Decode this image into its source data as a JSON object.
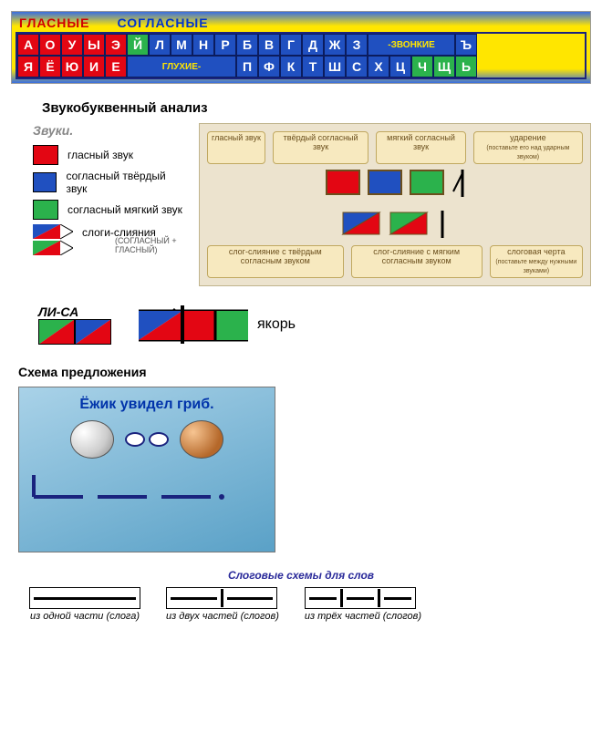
{
  "colors": {
    "vowel": "#e30613",
    "consonant_hard": "#2050c0",
    "consonant_soft": "#2bb24c",
    "frame": "#0b1c5e",
    "yellow": "#ffe600"
  },
  "alphabet_bar": {
    "header_vowels": "ГЛАСНЫЕ",
    "header_consonants": "СОГЛАСНЫЕ",
    "row1": {
      "vowels": [
        "А",
        "О",
        "У",
        "Ы",
        "Э"
      ],
      "consonants": [
        "Й",
        "Л",
        "М",
        "Н",
        "Р",
        "Б",
        "В",
        "Г",
        "Д",
        "Ж",
        "З"
      ],
      "tag": "-ЗВОНКИЕ",
      "sign": "Ъ"
    },
    "row2": {
      "vowels": [
        "Я",
        "Ё",
        "Ю",
        "И",
        "Е"
      ],
      "tag": "ГЛУХИЕ-",
      "consonants": [
        "П",
        "Ф",
        "К",
        "Т",
        "Ш",
        "С",
        "Х",
        "Ц",
        "Ч",
        "Щ"
      ],
      "sign": "Ь"
    }
  },
  "section1_title": "Звукобуквенный анализ",
  "legend": {
    "title": "Звуки.",
    "vowel": "гласный звук",
    "hard": "согласный твёрдый звук",
    "soft": "согласный мягкий звук",
    "merge": "слоги-слияния",
    "merge_sub": "(СОГЛАСНЫЙ + ГЛАСНЫЙ)"
  },
  "annot": {
    "box1": "гласный звук",
    "box2": "твёрдый согласный звук",
    "box3": "мягкий согласный звук",
    "box4": "ударение",
    "box4_sub": "(поставьте его над ударным звуком)",
    "box5": "слог-слияние с твёрдым согласным звуком",
    "box6": "слог-слияние с мягким согласным звуком",
    "box7": "слоговая черта",
    "box7_sub": "(поставьте между нужными звуками)"
  },
  "lisa": {
    "label": "ЛИ-СА"
  },
  "yakor": {
    "label": "якорь"
  },
  "section2_title": "Схема предложения",
  "sentence": {
    "text": "Ёжик увидел гриб."
  },
  "syllable_schemes": {
    "title": "Слоговые схемы для слов",
    "one": "из одной части (слога)",
    "two": "из двух частей (слогов)",
    "three": "из трёх частей (слогов)"
  }
}
